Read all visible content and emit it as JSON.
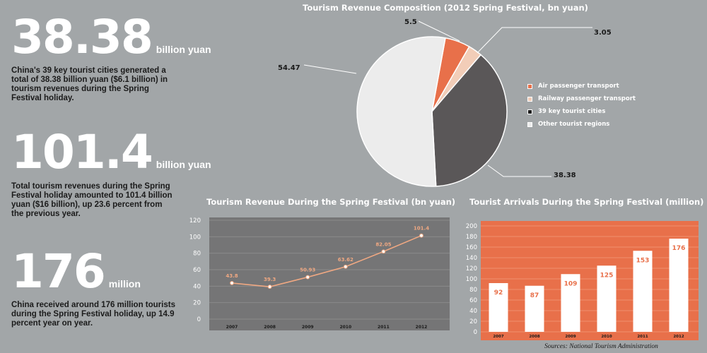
{
  "stats": [
    {
      "value": "38.38",
      "unit": "billion yuan",
      "desc": "China's 39 key tourist cities generated a total of 38.38 billion yuan ($6.1 billion) in tourism revenues during the Spring Festival holiday."
    },
    {
      "value": "101.4",
      "unit": "billion yuan",
      "desc": "Total tourism revenues during the Spring Festival holiday amounted to 101.4 billion yuan ($16 billion), up 23.6 percent from the previous year."
    },
    {
      "value": "176",
      "unit": "million",
      "desc": "China received around 176 million tourists during the Spring Festival holiday, up 14.9 percent year on year."
    }
  ],
  "colors": {
    "background": "#a2a6a8",
    "orange": "#e8704a",
    "peach": "#f2cdb8",
    "dark": "#5a5758",
    "light": "#ececec",
    "line_panel": "#757576"
  },
  "source": "Sources: National Tourism Administration",
  "chart_data": [
    {
      "type": "pie",
      "title": "Tourism Revenue Composition (2012 Spring Festival, bn yuan)",
      "legend_position": "right",
      "slices": [
        {
          "name": "Air passenger transport",
          "value": 5.5,
          "label": "5.5",
          "color": "#e8704a"
        },
        {
          "name": "Railway passenger transport",
          "value": 3.05,
          "label": "3.05",
          "color": "#f2cdb8"
        },
        {
          "name": "39 key tourist cities",
          "value": 38.38,
          "label": "38.38",
          "color": "#5a5758"
        },
        {
          "name": "Other tourist regions",
          "value": 54.47,
          "label": "54.47",
          "color": "#ececec"
        }
      ]
    },
    {
      "type": "line",
      "title": "Tourism Revenue During the Spring Festival (bn yuan)",
      "categories": [
        "2007",
        "2008",
        "2009",
        "2010",
        "2011",
        "2012"
      ],
      "values": [
        43.8,
        39.3,
        50.93,
        63.62,
        82.05,
        101.4
      ],
      "value_labels": [
        "43.8",
        "39.3",
        "50.93",
        "63.62",
        "82.05",
        "101.4"
      ],
      "ylim": [
        0,
        120
      ],
      "yticks": [
        "0",
        "20",
        "40",
        "60",
        "80",
        "100",
        "120"
      ],
      "grid": true,
      "line_color": "#f0a882"
    },
    {
      "type": "bar",
      "title": "Tourist Arrivals During the Spring Festival (million)",
      "categories": [
        "2007",
        "2008",
        "2009",
        "2010",
        "2011",
        "2012"
      ],
      "values": [
        92,
        87,
        109,
        125,
        153,
        176
      ],
      "value_labels": [
        "92",
        "87",
        "109",
        "125",
        "153",
        "176"
      ],
      "ylim": [
        0,
        200
      ],
      "yticks": [
        "0",
        "20",
        "40",
        "60",
        "80",
        "100",
        "120",
        "140",
        "160",
        "180",
        "200"
      ],
      "grid": true,
      "bar_color": "#ffffff",
      "panel_color": "#e8704a"
    }
  ]
}
